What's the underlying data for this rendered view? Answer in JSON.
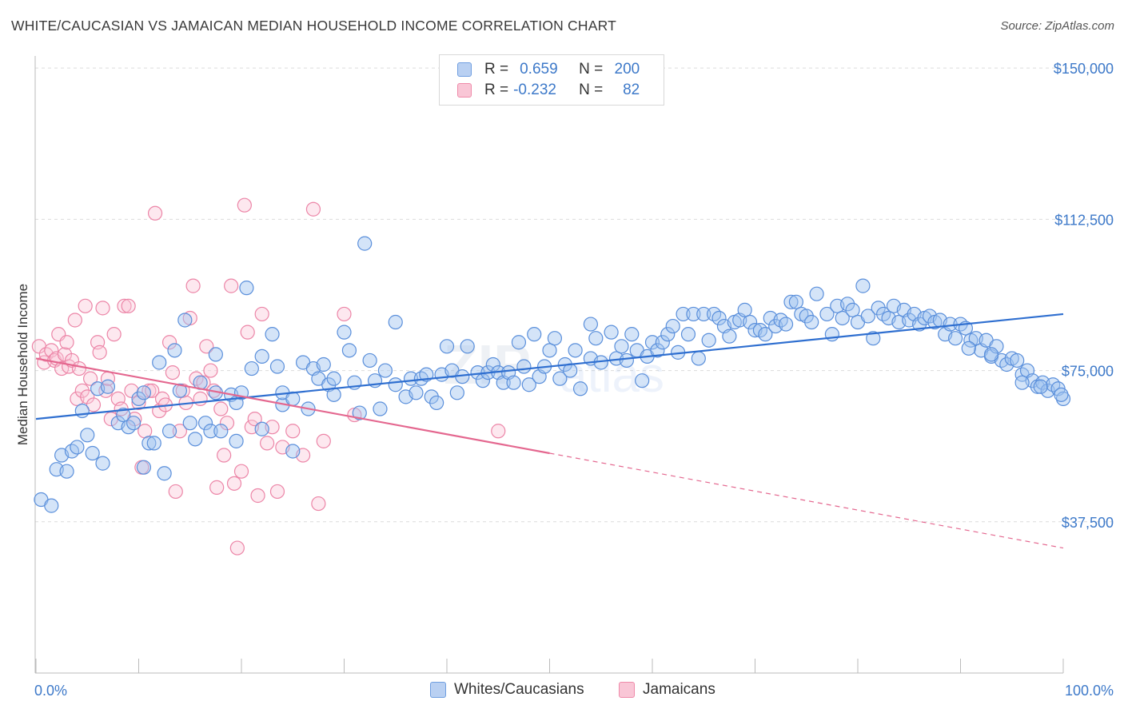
{
  "title": "WHITE/CAUCASIAN VS JAMAICAN MEDIAN HOUSEHOLD INCOME CORRELATION CHART",
  "source": "Source: ZipAtlas.com",
  "legend": {
    "rows": [
      {
        "r_label": "R =",
        "r_value": "0.659",
        "n_label": "N =",
        "n_value": "200",
        "color": "#6f9ee0",
        "fill": "#b9d0f2"
      },
      {
        "r_label": "R =",
        "r_value": "-0.232",
        "n_label": "N =",
        "n_value": "82",
        "color": "#ef8aa9",
        "fill": "#f9c6d6"
      }
    ]
  },
  "bottom_legend": [
    {
      "label": "Whites/Caucasians",
      "color": "#6f9ee0",
      "fill": "#b9d0f2"
    },
    {
      "label": "Jamaicans",
      "color": "#ef8aa9",
      "fill": "#f9c6d6"
    }
  ],
  "chart_data": {
    "type": "scatter",
    "title": "WHITE/CAUCASIAN VS JAMAICAN MEDIAN HOUSEHOLD INCOME CORRELATION CHART",
    "ylabel": "Median Household Income",
    "xlabel": "",
    "x_tick_labels": [
      "0.0%",
      "100.0%"
    ],
    "y_tick_labels": [
      "$150,000",
      "$112,500",
      "$75,000",
      "$37,500"
    ],
    "y_ticks": [
      150000,
      112500,
      75000,
      37500
    ],
    "xlim": [
      0,
      100
    ],
    "ylim": [
      0,
      153000
    ],
    "grid": "horizontal dashed",
    "legend_position": "top-center",
    "colors": {
      "whites": "#3d79d8",
      "jamaicans": "#e86b95"
    },
    "series": [
      {
        "name": "Whites/Caucasians",
        "r": 0.659,
        "n": 200,
        "trend": {
          "x0": 0,
          "y0": 63000,
          "x1": 100,
          "y1": 89000
        },
        "points": [
          [
            0.5,
            43000
          ],
          [
            1.5,
            41500
          ],
          [
            2,
            50500
          ],
          [
            2.5,
            54000
          ],
          [
            3,
            50000
          ],
          [
            3.5,
            55000
          ],
          [
            4,
            56000
          ],
          [
            4.5,
            65000
          ],
          [
            5,
            59000
          ],
          [
            5.5,
            54500
          ],
          [
            6,
            70500
          ],
          [
            6.5,
            52000
          ],
          [
            7,
            71000
          ],
          [
            8,
            62000
          ],
          [
            8.5,
            64000
          ],
          [
            9,
            61000
          ],
          [
            9.5,
            62000
          ],
          [
            10,
            68000
          ],
          [
            10.5,
            69500
          ],
          [
            10.5,
            51000
          ],
          [
            11,
            57000
          ],
          [
            11.5,
            57000
          ],
          [
            12,
            77000
          ],
          [
            12.5,
            49500
          ],
          [
            13,
            60000
          ],
          [
            13.5,
            80000
          ],
          [
            14,
            70000
          ],
          [
            14.5,
            87500
          ],
          [
            15,
            62000
          ],
          [
            15.5,
            58000
          ],
          [
            16,
            72000
          ],
          [
            16.5,
            62000
          ],
          [
            17,
            60000
          ],
          [
            17.5,
            69500
          ],
          [
            17.5,
            79000
          ],
          [
            18,
            60000
          ],
          [
            19,
            69000
          ],
          [
            19.5,
            67000
          ],
          [
            19.5,
            57500
          ],
          [
            20,
            69500
          ],
          [
            20.5,
            95500
          ],
          [
            21,
            75500
          ],
          [
            22,
            60500
          ],
          [
            22,
            78500
          ],
          [
            23,
            84000
          ],
          [
            23.5,
            76000
          ],
          [
            24,
            66500
          ],
          [
            24,
            69500
          ],
          [
            25,
            68000
          ],
          [
            25,
            55000
          ],
          [
            26,
            77000
          ],
          [
            26.5,
            65500
          ],
          [
            27,
            75500
          ],
          [
            27.5,
            73000
          ],
          [
            28,
            76500
          ],
          [
            28.5,
            71500
          ],
          [
            29,
            69000
          ],
          [
            29,
            73000
          ],
          [
            30,
            84500
          ],
          [
            30.5,
            80000
          ],
          [
            31,
            72000
          ],
          [
            31.5,
            64500
          ],
          [
            32,
            106500
          ],
          [
            32.5,
            77500
          ],
          [
            33,
            72500
          ],
          [
            33.5,
            65500
          ],
          [
            34,
            75000
          ],
          [
            35,
            87000
          ],
          [
            35,
            71500
          ],
          [
            36,
            68500
          ],
          [
            36.5,
            73000
          ],
          [
            37,
            69500
          ],
          [
            37.5,
            73000
          ],
          [
            38,
            74000
          ],
          [
            38.5,
            68500
          ],
          [
            39,
            67000
          ],
          [
            39.5,
            74000
          ],
          [
            40,
            81000
          ],
          [
            40.5,
            75000
          ],
          [
            41,
            69500
          ],
          [
            41.5,
            73500
          ],
          [
            42,
            81000
          ],
          [
            43,
            74500
          ],
          [
            43.5,
            72500
          ],
          [
            44,
            74500
          ],
          [
            44.5,
            76500
          ],
          [
            45,
            74500
          ],
          [
            45.5,
            72000
          ],
          [
            46,
            74500
          ],
          [
            46.5,
            72000
          ],
          [
            47,
            82000
          ],
          [
            47.5,
            76000
          ],
          [
            48,
            71500
          ],
          [
            48.5,
            84000
          ],
          [
            49,
            73500
          ],
          [
            49.5,
            76000
          ],
          [
            50,
            80000
          ],
          [
            50.5,
            83000
          ],
          [
            51,
            73000
          ],
          [
            51.5,
            76500
          ],
          [
            52,
            75000
          ],
          [
            52.5,
            80000
          ],
          [
            53,
            70500
          ],
          [
            54,
            78000
          ],
          [
            54,
            86500
          ],
          [
            54.5,
            83000
          ],
          [
            55,
            77000
          ],
          [
            56,
            84500
          ],
          [
            56.5,
            78000
          ],
          [
            57,
            81000
          ],
          [
            57.5,
            77500
          ],
          [
            58,
            84000
          ],
          [
            58.5,
            80000
          ],
          [
            59,
            72500
          ],
          [
            59.5,
            78500
          ],
          [
            60,
            82000
          ],
          [
            60.5,
            80000
          ],
          [
            61,
            82000
          ],
          [
            61.5,
            84000
          ],
          [
            62,
            86000
          ],
          [
            62.5,
            79500
          ],
          [
            63,
            89000
          ],
          [
            63.5,
            84000
          ],
          [
            64,
            89000
          ],
          [
            64.5,
            78000
          ],
          [
            65,
            89000
          ],
          [
            65.5,
            82500
          ],
          [
            66,
            89000
          ],
          [
            66.5,
            88000
          ],
          [
            67,
            86000
          ],
          [
            67.5,
            83500
          ],
          [
            68,
            87000
          ],
          [
            68.5,
            87500
          ],
          [
            69,
            90000
          ],
          [
            69.5,
            87000
          ],
          [
            70,
            85000
          ],
          [
            70.5,
            85000
          ],
          [
            71,
            84000
          ],
          [
            71.5,
            88000
          ],
          [
            72,
            86000
          ],
          [
            72.5,
            87500
          ],
          [
            73,
            86500
          ],
          [
            73.5,
            92000
          ],
          [
            74,
            92000
          ],
          [
            74.5,
            89000
          ],
          [
            75,
            88500
          ],
          [
            75.5,
            87000
          ],
          [
            76,
            94000
          ],
          [
            77,
            89000
          ],
          [
            77.5,
            84000
          ],
          [
            78,
            91000
          ],
          [
            78.5,
            88000
          ],
          [
            79,
            91500
          ],
          [
            79.5,
            90000
          ],
          [
            80,
            87000
          ],
          [
            80.5,
            96000
          ],
          [
            81,
            88500
          ],
          [
            81.5,
            83000
          ],
          [
            82,
            90500
          ],
          [
            82.5,
            89000
          ],
          [
            83,
            88000
          ],
          [
            83.5,
            91000
          ],
          [
            84,
            87000
          ],
          [
            84.5,
            90000
          ],
          [
            85,
            87500
          ],
          [
            85.5,
            89000
          ],
          [
            86,
            86500
          ],
          [
            86.5,
            88000
          ],
          [
            87,
            88500
          ],
          [
            87.5,
            87000
          ],
          [
            88,
            87500
          ],
          [
            88.5,
            84000
          ],
          [
            89,
            86500
          ],
          [
            89.5,
            83000
          ],
          [
            90,
            86500
          ],
          [
            90.5,
            85500
          ],
          [
            91,
            82500
          ],
          [
            91.5,
            83000
          ],
          [
            92,
            80000
          ],
          [
            92.5,
            82500
          ],
          [
            93,
            78500
          ],
          [
            93.5,
            81000
          ],
          [
            94,
            77500
          ],
          [
            94.5,
            76500
          ],
          [
            95,
            78000
          ],
          [
            95.5,
            77500
          ],
          [
            96,
            74000
          ],
          [
            96.5,
            75000
          ],
          [
            97,
            72500
          ],
          [
            97.5,
            71000
          ],
          [
            98,
            72000
          ],
          [
            98.5,
            70000
          ],
          [
            99,
            71500
          ],
          [
            99.5,
            70500
          ],
          [
            100,
            68000
          ],
          [
            96,
            72000
          ],
          [
            97.8,
            71000
          ],
          [
            93,
            79000
          ],
          [
            90.8,
            80500
          ],
          [
            99.8,
            69000
          ]
        ]
      },
      {
        "name": "Jamaicans",
        "r": -0.232,
        "n": 82,
        "trend": {
          "x0": 0,
          "y0": 78000,
          "x1": 50,
          "y1": 54500,
          "dash_x1": 100,
          "dash_y1": 31000
        },
        "points": [
          [
            0.3,
            81000
          ],
          [
            0.8,
            77000
          ],
          [
            1,
            79000
          ],
          [
            1.5,
            80000
          ],
          [
            1.8,
            77500
          ],
          [
            2,
            78000
          ],
          [
            2.2,
            84000
          ],
          [
            2.5,
            75500
          ],
          [
            2.8,
            79000
          ],
          [
            3,
            82000
          ],
          [
            3.2,
            76000
          ],
          [
            3.5,
            77500
          ],
          [
            3.8,
            87500
          ],
          [
            4,
            68000
          ],
          [
            4.2,
            75500
          ],
          [
            4.5,
            70000
          ],
          [
            4.8,
            91000
          ],
          [
            5,
            68500
          ],
          [
            5.3,
            73000
          ],
          [
            5.6,
            66500
          ],
          [
            6,
            82000
          ],
          [
            6.2,
            79500
          ],
          [
            6.5,
            90500
          ],
          [
            6.8,
            70000
          ],
          [
            7,
            73000
          ],
          [
            7.3,
            63000
          ],
          [
            7.6,
            84000
          ],
          [
            8,
            68000
          ],
          [
            8.3,
            65500
          ],
          [
            8.6,
            91000
          ],
          [
            9,
            91000
          ],
          [
            9.3,
            70000
          ],
          [
            9.6,
            63000
          ],
          [
            10,
            67000
          ],
          [
            10.3,
            51000
          ],
          [
            10.6,
            60000
          ],
          [
            11,
            70000
          ],
          [
            11.3,
            70000
          ],
          [
            11.6,
            114000
          ],
          [
            12,
            65000
          ],
          [
            12.3,
            68000
          ],
          [
            12.6,
            66500
          ],
          [
            13,
            82000
          ],
          [
            13.3,
            74500
          ],
          [
            13.6,
            45000
          ],
          [
            14,
            60000
          ],
          [
            14.3,
            70000
          ],
          [
            14.6,
            67000
          ],
          [
            15,
            88000
          ],
          [
            15.3,
            96000
          ],
          [
            15.6,
            73000
          ],
          [
            16,
            68000
          ],
          [
            16.3,
            72000
          ],
          [
            16.6,
            81000
          ],
          [
            17,
            75000
          ],
          [
            17.3,
            70000
          ],
          [
            17.6,
            46000
          ],
          [
            18,
            65500
          ],
          [
            18.3,
            54000
          ],
          [
            18.6,
            62000
          ],
          [
            19,
            96000
          ],
          [
            19.3,
            47000
          ],
          [
            19.6,
            31000
          ],
          [
            20,
            50000
          ],
          [
            20.3,
            116000
          ],
          [
            20.6,
            84500
          ],
          [
            21,
            61000
          ],
          [
            21.3,
            63000
          ],
          [
            21.6,
            44000
          ],
          [
            22,
            89000
          ],
          [
            22.5,
            57000
          ],
          [
            23,
            61000
          ],
          [
            23.5,
            45000
          ],
          [
            24,
            56000
          ],
          [
            25,
            60000
          ],
          [
            26,
            54000
          ],
          [
            27,
            115000
          ],
          [
            27.5,
            42000
          ],
          [
            28,
            57500
          ],
          [
            31,
            64000
          ],
          [
            30,
            89000
          ],
          [
            45,
            60000
          ]
        ]
      }
    ]
  }
}
